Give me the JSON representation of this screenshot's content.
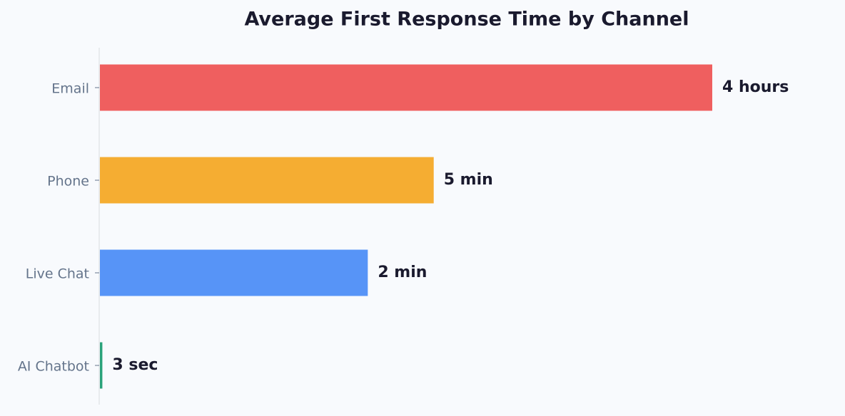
{
  "chart_data": {
    "type": "barh",
    "title": "Average First Response Time by Channel",
    "categories": [
      "Email",
      "Phone",
      "Live Chat",
      "AI Chatbot"
    ],
    "values": [
      14400,
      300,
      120,
      3
    ],
    "value_labels": [
      "4 hours",
      "5 min",
      "2 min",
      "3 sec"
    ],
    "colors": [
      "#ef5f5f",
      "#f5ad32",
      "#5794f7",
      "#2aa27a"
    ],
    "xscale": "log",
    "xlim": [
      2.9,
      14400
    ]
  }
}
